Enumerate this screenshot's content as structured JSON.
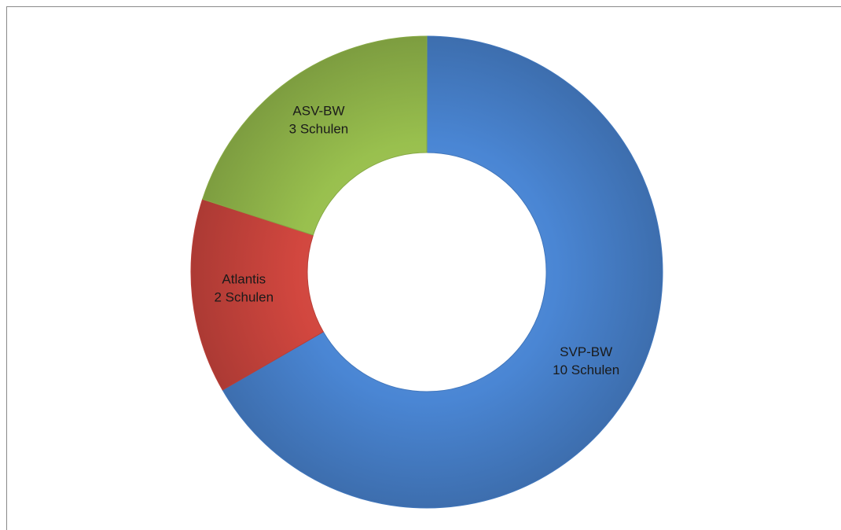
{
  "chart_data": {
    "type": "pie",
    "variant": "donut",
    "title": "",
    "start": "top, clockwise",
    "series": [
      {
        "label": "SVP-BW",
        "value": 10,
        "detail": "10 Schulen",
        "color": "#4a86d4"
      },
      {
        "label": "Atlantis",
        "value": 2,
        "detail": "2 Schulen",
        "color": "#d2473f"
      },
      {
        "label": "ASV-BW",
        "value": 3,
        "detail": "3 Schulen",
        "color": "#99c04e"
      }
    ]
  }
}
